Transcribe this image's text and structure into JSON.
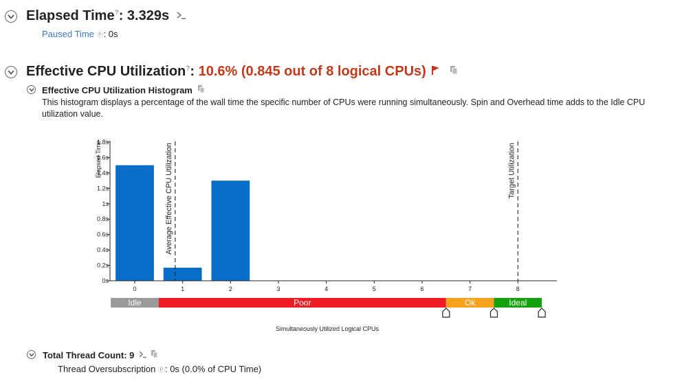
{
  "elapsed": {
    "label": "Elapsed Time",
    "value": "3.329s",
    "help": "?",
    "paused_label": "Paused Time",
    "paused_value": "0s"
  },
  "cpu": {
    "label": "Effective CPU Utilization",
    "value": "10.6% (0.845 out of 8 logical CPUs)",
    "help": "?"
  },
  "histogram": {
    "title": "Effective CPU Utilization Histogram",
    "description": "This histogram displays a percentage of the wall time the specific number of CPUs were running simultaneously. Spin and Overhead time adds to the Idle CPU utilization value."
  },
  "threads": {
    "label": "Total Thread Count:",
    "value": "9",
    "oversub_label": "Thread Oversubscription",
    "oversub_value": "0s (0.0% of CPU Time)"
  },
  "colors": {
    "bar": "#0a6ec8",
    "idle": "#9a9a9a",
    "poor": "#ee1c24",
    "ok": "#f7a21b",
    "ideal": "#13a10e",
    "warning": "#c0391b",
    "link": "#3a79c5"
  },
  "chart_data": {
    "type": "bar",
    "categories": [
      "0",
      "1",
      "2",
      "3",
      "4",
      "5",
      "6",
      "7",
      "8"
    ],
    "values": [
      1.5,
      0.17,
      1.3,
      0,
      0,
      0,
      0,
      0,
      0
    ],
    "ylabel": "Elapsed Time",
    "xlabel": "Simultaneously Utilized Logical CPUs",
    "yticks": [
      "0s",
      "0.2s",
      "0.4s",
      "0.6s",
      "0.8s",
      "1s",
      "1.2s",
      "1.4s",
      "1.6s",
      "1.8s"
    ],
    "ylim": [
      0,
      1.8
    ],
    "markers": [
      {
        "label": "Average Effective CPU Utilization",
        "x": 0.845
      },
      {
        "label": "Target Utilization",
        "x": 8
      }
    ],
    "ranges": [
      {
        "label": "Idle",
        "from": -0.5,
        "to": 0.5
      },
      {
        "label": "Poor",
        "from": 0.5,
        "to": 6.5
      },
      {
        "label": "Ok",
        "from": 6.5,
        "to": 7.5
      },
      {
        "label": "Ideal",
        "from": 7.5,
        "to": 8.5
      }
    ]
  }
}
